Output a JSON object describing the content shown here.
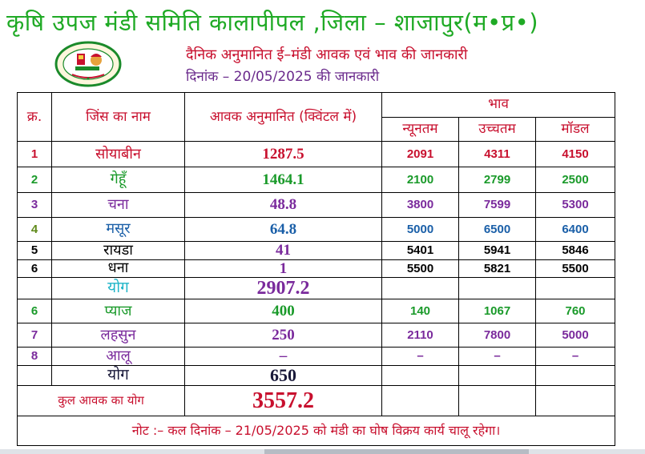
{
  "title": "कृषि उपज मंडी समिति कालापीपल ,जिला – शाजापुर(म•प्र•)",
  "subtitle": "दैनिक अनुमानित ई–मंडी आवक एवं भाव की जानकारी",
  "date_line": "दिनांक – 20/05/2025 की जानकारी",
  "headers": {
    "serial": "क्र.",
    "commodity": "जिंस का नाम",
    "arrival": "आवक अनुमानित (क्विंटल में)",
    "price": "भाव",
    "min": "न्यूनतम",
    "max": "उच्चतम",
    "modal": "मॉडल"
  },
  "group1": [
    {
      "sn": "1",
      "name": "सोयाबीन",
      "arrival": "1287.5",
      "min": "2091",
      "max": "4311",
      "modal": "4150",
      "sn_color": "red",
      "name_color": "red",
      "val_color": "red",
      "price_color": "red"
    },
    {
      "sn": "2",
      "name": "गेहूँ",
      "arrival": "1464.1",
      "min": "2100",
      "max": "2799",
      "modal": "2500",
      "sn_color": "green",
      "name_color": "green",
      "val_color": "green",
      "price_color": "green"
    },
    {
      "sn": "3",
      "name": "चना",
      "arrival": "48.8",
      "min": "3800",
      "max": "7599",
      "modal": "5300",
      "sn_color": "purple",
      "name_color": "purple",
      "val_color": "purple",
      "price_color": "purple"
    },
    {
      "sn": "4",
      "name": "मसूर",
      "arrival": "64.8",
      "min": "5000",
      "max": "6500",
      "modal": "6400",
      "sn_color": "olive",
      "name_color": "blue",
      "val_color": "blue",
      "price_color": "blue"
    },
    {
      "sn": "5",
      "name": "रायडा",
      "arrival": "41",
      "min": "5401",
      "max": "5941",
      "modal": "5846",
      "sn_color": "black",
      "name_color": "black",
      "val_color": "purple",
      "price_color": "black"
    },
    {
      "sn": "6",
      "name": "धना",
      "arrival": "1",
      "min": "5500",
      "max": "5821",
      "modal": "5500",
      "sn_color": "black",
      "name_color": "black",
      "val_color": "purple",
      "price_color": "black"
    }
  ],
  "total1": {
    "label": "योग",
    "value": "2907.2"
  },
  "group2": [
    {
      "sn": "6",
      "name": "प्याज",
      "arrival": "400",
      "min": "140",
      "max": "1067",
      "modal": "760",
      "sn_color": "green",
      "name_color": "green",
      "val_color": "green",
      "price_color": "green"
    },
    {
      "sn": "7",
      "name": "लहसुन",
      "arrival": "250",
      "min": "2110",
      "max": "7800",
      "modal": "5000",
      "sn_color": "purple",
      "name_color": "purple",
      "val_color": "purple",
      "price_color": "purple"
    },
    {
      "sn": "8",
      "name": "आलू",
      "arrival": "–",
      "min": "–",
      "max": "–",
      "modal": "–",
      "sn_color": "purple",
      "name_color": "purple",
      "val_color": "purple",
      "price_color": "purple"
    }
  ],
  "total2": {
    "label": "योग",
    "value": "650"
  },
  "grand_total": {
    "label": "कुल आवक का योग",
    "value": "3557.2"
  },
  "note": "नोट :– कल दिनांक – 21/05/2025 को मंडी का घोष विक्रय कार्य चालू रहेगा।",
  "colors": {
    "green_title": "#1faa25",
    "red": "#c8102e",
    "purple": "#7a2a9c",
    "blue": "#1a5fa8",
    "cyan": "#20b5c8"
  },
  "logo": {
    "icon": "mandi-board-seal",
    "text": "मध्यप्रदेश राज्य कृषि विपणन बोर्ड भोपाल"
  }
}
